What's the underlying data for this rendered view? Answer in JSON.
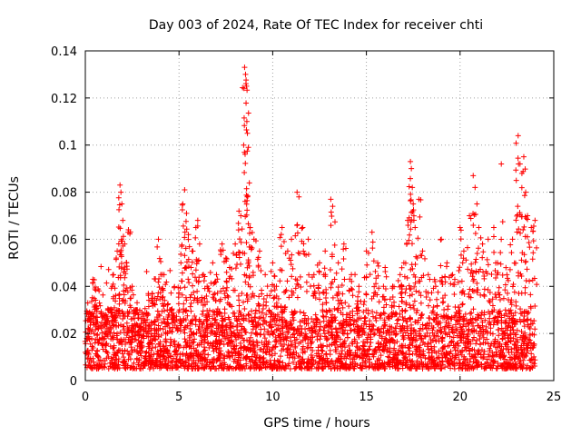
{
  "chart_data": {
    "type": "scatter",
    "title": "Day 003 of 2024, Rate Of TEC Index for receiver chti",
    "xlabel": "GPS time / hours",
    "ylabel": "ROTI / TECUs",
    "xlim": [
      0,
      25
    ],
    "ylim": [
      0,
      0.14
    ],
    "xticks": [
      0,
      5,
      10,
      15,
      20,
      25
    ],
    "yticks": [
      0,
      0.02,
      0.04,
      0.06,
      0.08,
      0.1,
      0.12,
      0.14
    ],
    "xtick_labels": [
      "0",
      "5",
      "10",
      "15",
      "20",
      "25"
    ],
    "ytick_labels": [
      "0",
      "0.02",
      "0.04",
      "0.06",
      "0.08",
      "0.1",
      "0.12",
      "0.14"
    ],
    "grid": true,
    "marker": "+",
    "series": [
      {
        "name": "ROTI",
        "color": "#ff0000",
        "time_range_hours": [
          0,
          24
        ],
        "background_level": [
          0.005,
          0.03
        ],
        "points": [
          [
            0.1,
            0.012
          ],
          [
            0.2,
            0.018
          ],
          [
            0.3,
            0.025
          ],
          [
            0.4,
            0.043
          ],
          [
            0.5,
            0.032
          ],
          [
            0.7,
            0.022
          ],
          [
            0.9,
            0.015
          ],
          [
            1.1,
            0.02
          ],
          [
            1.3,
            0.03
          ],
          [
            1.5,
            0.045
          ],
          [
            1.7,
            0.055
          ],
          [
            1.85,
            0.083
          ],
          [
            1.9,
            0.08
          ],
          [
            1.95,
            0.075
          ],
          [
            2.0,
            0.068
          ],
          [
            2.1,
            0.058
          ],
          [
            2.2,
            0.05
          ],
          [
            2.3,
            0.064
          ],
          [
            2.5,
            0.04
          ],
          [
            2.7,
            0.03
          ],
          [
            3.0,
            0.022
          ],
          [
            3.3,
            0.02
          ],
          [
            3.6,
            0.035
          ],
          [
            3.9,
            0.06
          ],
          [
            4.2,
            0.045
          ],
          [
            4.5,
            0.03
          ],
          [
            4.8,
            0.025
          ],
          [
            5.1,
            0.05
          ],
          [
            5.2,
            0.075
          ],
          [
            5.3,
            0.081
          ],
          [
            5.4,
            0.071
          ],
          [
            5.5,
            0.062
          ],
          [
            5.7,
            0.055
          ],
          [
            5.9,
            0.065
          ],
          [
            6.0,
            0.068
          ],
          [
            6.1,
            0.058
          ],
          [
            6.3,
            0.045
          ],
          [
            6.5,
            0.04
          ],
          [
            6.8,
            0.05
          ],
          [
            7.0,
            0.045
          ],
          [
            7.3,
            0.058
          ],
          [
            7.5,
            0.052
          ],
          [
            7.7,
            0.048
          ],
          [
            8.0,
            0.058
          ],
          [
            8.2,
            0.072
          ],
          [
            8.3,
            0.07
          ],
          [
            8.45,
            0.1
          ],
          [
            8.5,
            0.133
          ],
          [
            8.55,
            0.13
          ],
          [
            8.6,
            0.125
          ],
          [
            8.62,
            0.11
          ],
          [
            8.65,
            0.105
          ],
          [
            8.7,
            0.099
          ],
          [
            8.8,
            0.065
          ],
          [
            9.0,
            0.06
          ],
          [
            9.3,
            0.055
          ],
          [
            9.6,
            0.045
          ],
          [
            10.0,
            0.05
          ],
          [
            10.2,
            0.04
          ],
          [
            10.5,
            0.065
          ],
          [
            10.8,
            0.055
          ],
          [
            11.0,
            0.06
          ],
          [
            11.3,
            0.08
          ],
          [
            11.4,
            0.078
          ],
          [
            11.6,
            0.065
          ],
          [
            11.9,
            0.06
          ],
          [
            12.2,
            0.045
          ],
          [
            12.5,
            0.05
          ],
          [
            12.8,
            0.055
          ],
          [
            13.1,
            0.077
          ],
          [
            13.2,
            0.074
          ],
          [
            13.5,
            0.05
          ],
          [
            13.8,
            0.058
          ],
          [
            14.2,
            0.045
          ],
          [
            14.6,
            0.04
          ],
          [
            15.0,
            0.055
          ],
          [
            15.3,
            0.063
          ],
          [
            15.6,
            0.05
          ],
          [
            16.0,
            0.048
          ],
          [
            16.4,
            0.04
          ],
          [
            16.8,
            0.045
          ],
          [
            17.0,
            0.05
          ],
          [
            17.2,
            0.068
          ],
          [
            17.35,
            0.093
          ],
          [
            17.4,
            0.09
          ],
          [
            17.45,
            0.082
          ],
          [
            17.5,
            0.075
          ],
          [
            17.6,
            0.065
          ],
          [
            17.8,
            0.077
          ],
          [
            18.0,
            0.055
          ],
          [
            18.3,
            0.045
          ],
          [
            18.7,
            0.04
          ],
          [
            19.0,
            0.06
          ],
          [
            19.3,
            0.05
          ],
          [
            19.6,
            0.045
          ],
          [
            20.0,
            0.065
          ],
          [
            20.2,
            0.055
          ],
          [
            20.5,
            0.07
          ],
          [
            20.7,
            0.087
          ],
          [
            20.8,
            0.082
          ],
          [
            20.9,
            0.075
          ],
          [
            21.0,
            0.065
          ],
          [
            21.2,
            0.058
          ],
          [
            21.5,
            0.06
          ],
          [
            21.8,
            0.065
          ],
          [
            22.0,
            0.05
          ],
          [
            22.2,
            0.092
          ],
          [
            22.5,
            0.045
          ],
          [
            22.8,
            0.06
          ],
          [
            23.0,
            0.085
          ],
          [
            23.1,
            0.104
          ],
          [
            23.2,
            0.092
          ],
          [
            23.3,
            0.088
          ],
          [
            23.4,
            0.095
          ],
          [
            23.5,
            0.08
          ],
          [
            23.6,
            0.07
          ],
          [
            23.8,
            0.065
          ],
          [
            24.0,
            0.068
          ]
        ]
      }
    ]
  }
}
